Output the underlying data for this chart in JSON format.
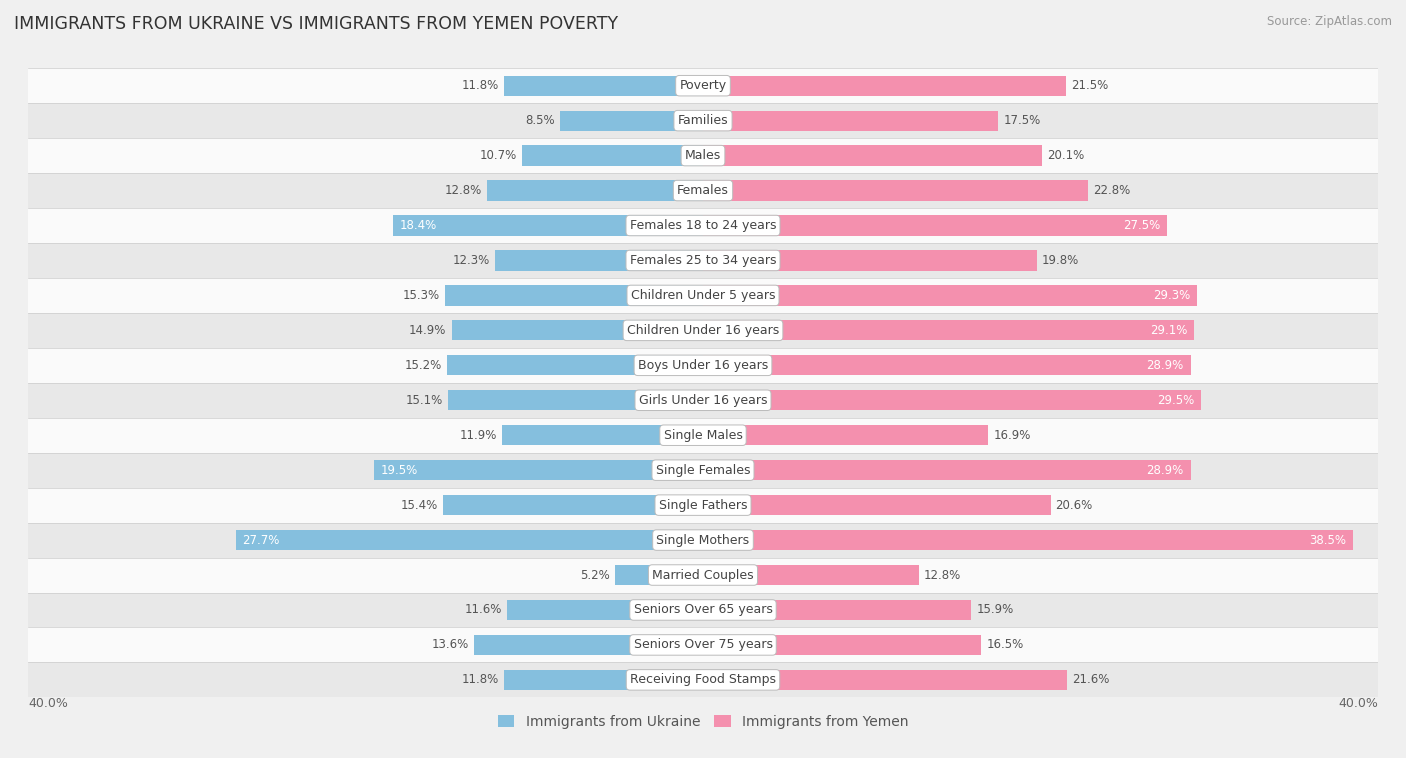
{
  "title": "IMMIGRANTS FROM UKRAINE VS IMMIGRANTS FROM YEMEN POVERTY",
  "source": "Source: ZipAtlas.com",
  "categories": [
    "Poverty",
    "Families",
    "Males",
    "Females",
    "Females 18 to 24 years",
    "Females 25 to 34 years",
    "Children Under 5 years",
    "Children Under 16 years",
    "Boys Under 16 years",
    "Girls Under 16 years",
    "Single Males",
    "Single Females",
    "Single Fathers",
    "Single Mothers",
    "Married Couples",
    "Seniors Over 65 years",
    "Seniors Over 75 years",
    "Receiving Food Stamps"
  ],
  "ukraine_values": [
    11.8,
    8.5,
    10.7,
    12.8,
    18.4,
    12.3,
    15.3,
    14.9,
    15.2,
    15.1,
    11.9,
    19.5,
    15.4,
    27.7,
    5.2,
    11.6,
    13.6,
    11.8
  ],
  "yemen_values": [
    21.5,
    17.5,
    20.1,
    22.8,
    27.5,
    19.8,
    29.3,
    29.1,
    28.9,
    29.5,
    16.9,
    28.9,
    20.6,
    38.5,
    12.8,
    15.9,
    16.5,
    21.6
  ],
  "ukraine_color": "#85bfde",
  "yemen_color": "#f490ae",
  "ukraine_label": "Immigrants from Ukraine",
  "yemen_label": "Immigrants from Yemen",
  "axis_max": 40.0,
  "bar_height": 0.58,
  "bg_color": "#f0f0f0",
  "row_bg_light": "#fafafa",
  "row_bg_dark": "#e8e8e8",
  "label_fontsize": 9.0,
  "value_fontsize": 8.5,
  "title_fontsize": 12.5
}
